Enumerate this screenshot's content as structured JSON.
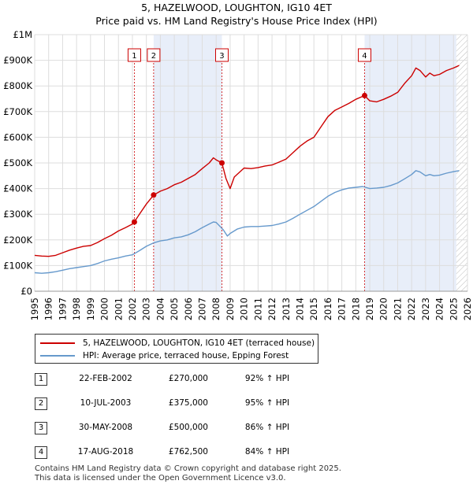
{
  "title": "5, HAZELWOOD, LOUGHTON, IG10 4ET",
  "subtitle": "Price paid vs. HM Land Registry's House Price Index (HPI)",
  "colors": {
    "price": "#cc0000",
    "hpi": "#6699cc",
    "shade": "#e8eef9",
    "grid": "#dddddd",
    "marker_line": "#cc0000"
  },
  "chart_data": {
    "type": "line",
    "title": "5, HAZELWOOD, LOUGHTON, IG10 4ET",
    "subtitle": "Price paid vs. HM Land Registry's House Price Index (HPI)",
    "xlim": [
      1995,
      2026
    ],
    "ylim": [
      0,
      1000000
    ],
    "y_ticks": [
      {
        "value": 0,
        "label": "£0"
      },
      {
        "value": 100000,
        "label": "£100K"
      },
      {
        "value": 200000,
        "label": "£200K"
      },
      {
        "value": 300000,
        "label": "£300K"
      },
      {
        "value": 400000,
        "label": "£400K"
      },
      {
        "value": 500000,
        "label": "£500K"
      },
      {
        "value": 600000,
        "label": "£600K"
      },
      {
        "value": 700000,
        "label": "£700K"
      },
      {
        "value": 800000,
        "label": "£800K"
      },
      {
        "value": 900000,
        "label": "£900K"
      },
      {
        "value": 1000000,
        "label": "£1M"
      }
    ],
    "x_ticks": [
      "1995",
      "1996",
      "1997",
      "1998",
      "1999",
      "2000",
      "2001",
      "2002",
      "2003",
      "2004",
      "2005",
      "2006",
      "2007",
      "2008",
      "2009",
      "2010",
      "2011",
      "2012",
      "2013",
      "2014",
      "2015",
      "2016",
      "2017",
      "2018",
      "2019",
      "2020",
      "2021",
      "2022",
      "2023",
      "2024",
      "2025",
      "2026"
    ],
    "shaded_ranges": [
      [
        2003.52,
        2008.41
      ],
      [
        2018.63,
        2025.2
      ]
    ],
    "hatched_from": 2025.2,
    "series": [
      {
        "name": "5, HAZELWOOD, LOUGHTON, IG10 4ET (terraced house)",
        "x": [
          1995,
          1995.5,
          1996,
          1996.5,
          1997,
          1997.5,
          1998,
          1998.5,
          1999,
          1999.5,
          2000,
          2000.5,
          2001,
          2001.5,
          2002,
          2002.14,
          2002.5,
          2003,
          2003.52,
          2004,
          2004.5,
          2005,
          2005.5,
          2006,
          2006.5,
          2007,
          2007.5,
          2007.8,
          2008,
          2008.41,
          2008.7,
          2009,
          2009.3,
          2009.7,
          2010,
          2010.5,
          2011,
          2011.5,
          2012,
          2012.5,
          2013,
          2013.5,
          2014,
          2014.5,
          2015,
          2015.5,
          2016,
          2016.5,
          2017,
          2017.5,
          2018,
          2018.63,
          2019,
          2019.5,
          2020,
          2020.5,
          2021,
          2021.5,
          2022,
          2022.3,
          2022.6,
          2023,
          2023.3,
          2023.6,
          2024,
          2024.5,
          2025,
          2025.4
        ],
        "values": [
          140000,
          137000,
          136000,
          140000,
          150000,
          160000,
          168000,
          175000,
          178000,
          190000,
          205000,
          218000,
          235000,
          248000,
          262000,
          270000,
          300000,
          340000,
          375000,
          390000,
          400000,
          415000,
          425000,
          440000,
          455000,
          478000,
          500000,
          520000,
          512000,
          500000,
          440000,
          400000,
          445000,
          465000,
          480000,
          478000,
          482000,
          488000,
          492000,
          503000,
          515000,
          540000,
          565000,
          585000,
          600000,
          640000,
          680000,
          705000,
          718000,
          732000,
          748000,
          762500,
          742000,
          738000,
          748000,
          760000,
          775000,
          810000,
          840000,
          870000,
          860000,
          835000,
          850000,
          840000,
          845000,
          860000,
          870000,
          880000
        ]
      },
      {
        "name": "HPI: Average price, terraced house, Epping Forest",
        "x": [
          1995,
          1995.5,
          1996,
          1996.5,
          1997,
          1997.5,
          1998,
          1998.5,
          1999,
          1999.5,
          2000,
          2000.5,
          2001,
          2001.5,
          2002,
          2002.5,
          2003,
          2003.5,
          2004,
          2004.5,
          2005,
          2005.5,
          2006,
          2006.5,
          2007,
          2007.5,
          2007.8,
          2008,
          2008.5,
          2008.8,
          2009,
          2009.5,
          2010,
          2010.5,
          2011,
          2011.5,
          2012,
          2012.5,
          2013,
          2013.5,
          2014,
          2014.5,
          2015,
          2015.5,
          2016,
          2016.5,
          2017,
          2017.5,
          2018,
          2018.5,
          2019,
          2019.5,
          2020,
          2020.5,
          2021,
          2021.5,
          2022,
          2022.3,
          2022.6,
          2023,
          2023.3,
          2023.6,
          2024,
          2024.5,
          2025,
          2025.4
        ],
        "values": [
          72000,
          70000,
          72000,
          76000,
          82000,
          88000,
          92000,
          96000,
          100000,
          108000,
          118000,
          125000,
          130000,
          137000,
          142000,
          158000,
          175000,
          188000,
          196000,
          200000,
          208000,
          212000,
          220000,
          232000,
          248000,
          262000,
          270000,
          268000,
          240000,
          215000,
          225000,
          242000,
          250000,
          252000,
          252000,
          254000,
          256000,
          262000,
          270000,
          284000,
          300000,
          315000,
          330000,
          350000,
          370000,
          385000,
          395000,
          402000,
          405000,
          408000,
          400000,
          402000,
          405000,
          412000,
          422000,
          438000,
          455000,
          470000,
          465000,
          450000,
          455000,
          450000,
          452000,
          460000,
          466000,
          470000
        ]
      }
    ],
    "markers": [
      {
        "label": "1",
        "x": 2002.14,
        "value": 270000
      },
      {
        "label": "2",
        "x": 2003.52,
        "value": 375000
      },
      {
        "label": "3",
        "x": 2008.41,
        "value": 500000
      },
      {
        "label": "4",
        "x": 2018.63,
        "value": 762500
      }
    ]
  },
  "legend": {
    "price_label": "5, HAZELWOOD, LOUGHTON, IG10 4ET (terraced house)",
    "hpi_label": "HPI: Average price, terraced house, Epping Forest"
  },
  "sales": [
    {
      "num": "1",
      "date": "22-FEB-2002",
      "price": "£270,000",
      "hpi": "92% ↑ HPI"
    },
    {
      "num": "2",
      "date": "10-JUL-2003",
      "price": "£375,000",
      "hpi": "95% ↑ HPI"
    },
    {
      "num": "3",
      "date": "30-MAY-2008",
      "price": "£500,000",
      "hpi": "86% ↑ HPI"
    },
    {
      "num": "4",
      "date": "17-AUG-2018",
      "price": "£762,500",
      "hpi": "84% ↑ HPI"
    }
  ],
  "footer": {
    "line1": "Contains HM Land Registry data © Crown copyright and database right 2025.",
    "line2": "This data is licensed under the Open Government Licence v3.0."
  }
}
